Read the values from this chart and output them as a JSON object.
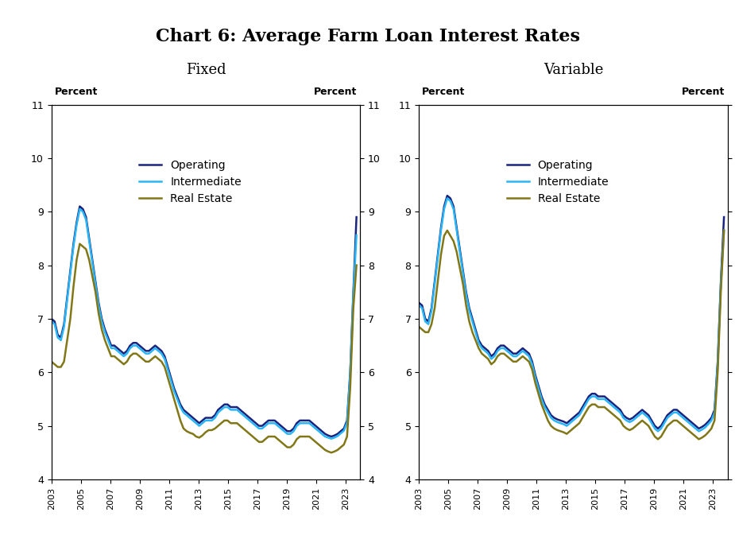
{
  "title": "Chart 6: Average Farm Loan Interest Rates",
  "subtitle_left": "Fixed",
  "subtitle_right": "Variable",
  "ylabel_left": "Percent",
  "ylabel_right": "Percent",
  "ylim": [
    4,
    11
  ],
  "yticks": [
    4,
    5,
    6,
    7,
    8,
    9,
    10,
    11
  ],
  "xtick_labels": [
    "2003",
    "2005",
    "2007",
    "2009",
    "2011",
    "2013",
    "2015",
    "2017",
    "2019",
    "2021",
    "2023"
  ],
  "legend_labels": [
    "Operating",
    "Intermediate",
    "Real Estate"
  ],
  "line_colors": [
    "#1a237e",
    "#29b6f6",
    "#827717"
  ],
  "line_width": 1.8,
  "fixed": {
    "operating": [
      7.0,
      6.95,
      6.7,
      6.65,
      6.9,
      7.4,
      7.9,
      8.4,
      8.8,
      9.1,
      9.05,
      8.9,
      8.5,
      8.1,
      7.7,
      7.3,
      7.0,
      6.8,
      6.65,
      6.5,
      6.5,
      6.45,
      6.4,
      6.35,
      6.4,
      6.5,
      6.55,
      6.55,
      6.5,
      6.45,
      6.4,
      6.4,
      6.45,
      6.5,
      6.45,
      6.4,
      6.3,
      6.1,
      5.9,
      5.7,
      5.55,
      5.4,
      5.3,
      5.25,
      5.2,
      5.15,
      5.1,
      5.05,
      5.1,
      5.15,
      5.15,
      5.15,
      5.2,
      5.3,
      5.35,
      5.4,
      5.4,
      5.35,
      5.35,
      5.35,
      5.3,
      5.25,
      5.2,
      5.15,
      5.1,
      5.05,
      5.0,
      5.0,
      5.05,
      5.1,
      5.1,
      5.1,
      5.05,
      5.0,
      4.95,
      4.9,
      4.9,
      4.95,
      5.05,
      5.1,
      5.1,
      5.1,
      5.1,
      5.05,
      5.0,
      4.95,
      4.9,
      4.85,
      4.82,
      4.8,
      4.82,
      4.85,
      4.9,
      4.95,
      5.1,
      6.0,
      7.5,
      8.9
    ],
    "intermediate": [
      6.95,
      6.9,
      6.65,
      6.6,
      6.85,
      7.35,
      7.85,
      8.35,
      8.75,
      9.05,
      9.0,
      8.85,
      8.45,
      8.05,
      7.65,
      7.25,
      6.95,
      6.75,
      6.6,
      6.45,
      6.45,
      6.4,
      6.35,
      6.3,
      6.35,
      6.45,
      6.5,
      6.5,
      6.45,
      6.4,
      6.35,
      6.35,
      6.4,
      6.45,
      6.4,
      6.35,
      6.25,
      6.05,
      5.85,
      5.65,
      5.5,
      5.35,
      5.25,
      5.2,
      5.15,
      5.1,
      5.05,
      5.0,
      5.05,
      5.1,
      5.1,
      5.1,
      5.15,
      5.25,
      5.3,
      5.35,
      5.35,
      5.3,
      5.3,
      5.3,
      5.25,
      5.2,
      5.15,
      5.1,
      5.05,
      5.0,
      4.95,
      4.95,
      5.0,
      5.05,
      5.05,
      5.05,
      5.0,
      4.95,
      4.9,
      4.85,
      4.85,
      4.9,
      5.0,
      5.05,
      5.05,
      5.05,
      5.05,
      5.0,
      4.95,
      4.9,
      4.85,
      4.8,
      4.78,
      4.76,
      4.78,
      4.81,
      4.86,
      4.91,
      5.06,
      5.96,
      7.46,
      8.56
    ],
    "real_estate": [
      6.2,
      6.15,
      6.1,
      6.1,
      6.2,
      6.6,
      7.0,
      7.6,
      8.1,
      8.4,
      8.35,
      8.3,
      8.1,
      7.8,
      7.5,
      7.1,
      6.8,
      6.6,
      6.45,
      6.3,
      6.3,
      6.25,
      6.2,
      6.15,
      6.2,
      6.3,
      6.35,
      6.35,
      6.3,
      6.25,
      6.2,
      6.2,
      6.25,
      6.3,
      6.25,
      6.2,
      6.1,
      5.9,
      5.7,
      5.5,
      5.3,
      5.1,
      4.95,
      4.9,
      4.87,
      4.85,
      4.8,
      4.78,
      4.82,
      4.88,
      4.92,
      4.92,
      4.95,
      5.0,
      5.05,
      5.1,
      5.1,
      5.05,
      5.05,
      5.05,
      5.0,
      4.95,
      4.9,
      4.85,
      4.8,
      4.75,
      4.7,
      4.7,
      4.75,
      4.8,
      4.8,
      4.8,
      4.75,
      4.7,
      4.65,
      4.6,
      4.6,
      4.65,
      4.75,
      4.8,
      4.8,
      4.8,
      4.8,
      4.75,
      4.7,
      4.65,
      4.6,
      4.55,
      4.52,
      4.5,
      4.52,
      4.55,
      4.6,
      4.65,
      4.8,
      5.7,
      7.2,
      8.0
    ]
  },
  "variable": {
    "operating": [
      7.3,
      7.25,
      7.0,
      6.95,
      7.2,
      7.7,
      8.2,
      8.7,
      9.1,
      9.3,
      9.25,
      9.1,
      8.7,
      8.3,
      7.9,
      7.5,
      7.2,
      7.0,
      6.8,
      6.6,
      6.5,
      6.45,
      6.4,
      6.3,
      6.35,
      6.45,
      6.5,
      6.5,
      6.45,
      6.4,
      6.35,
      6.35,
      6.4,
      6.45,
      6.4,
      6.35,
      6.2,
      5.95,
      5.75,
      5.55,
      5.4,
      5.3,
      5.2,
      5.15,
      5.12,
      5.1,
      5.08,
      5.05,
      5.1,
      5.15,
      5.2,
      5.25,
      5.35,
      5.45,
      5.55,
      5.6,
      5.6,
      5.55,
      5.55,
      5.55,
      5.5,
      5.45,
      5.4,
      5.35,
      5.3,
      5.2,
      5.15,
      5.12,
      5.15,
      5.2,
      5.25,
      5.3,
      5.25,
      5.2,
      5.1,
      5.0,
      4.95,
      5.0,
      5.1,
      5.2,
      5.25,
      5.3,
      5.3,
      5.25,
      5.2,
      5.15,
      5.1,
      5.05,
      5.0,
      4.95,
      4.98,
      5.02,
      5.08,
      5.15,
      5.3,
      6.2,
      7.7,
      8.9
    ],
    "intermediate": [
      7.25,
      7.2,
      6.95,
      6.9,
      7.15,
      7.65,
      8.15,
      8.65,
      9.05,
      9.25,
      9.2,
      9.05,
      8.65,
      8.25,
      7.85,
      7.45,
      7.15,
      6.95,
      6.75,
      6.55,
      6.45,
      6.4,
      6.35,
      6.25,
      6.3,
      6.4,
      6.45,
      6.45,
      6.4,
      6.35,
      6.3,
      6.3,
      6.35,
      6.4,
      6.35,
      6.3,
      6.15,
      5.9,
      5.7,
      5.5,
      5.35,
      5.25,
      5.15,
      5.1,
      5.07,
      5.05,
      5.03,
      5.0,
      5.05,
      5.1,
      5.15,
      5.2,
      5.3,
      5.4,
      5.5,
      5.55,
      5.55,
      5.5,
      5.5,
      5.5,
      5.45,
      5.4,
      5.35,
      5.3,
      5.25,
      5.15,
      5.1,
      5.07,
      5.1,
      5.15,
      5.2,
      5.25,
      5.2,
      5.15,
      5.05,
      4.95,
      4.9,
      4.95,
      5.05,
      5.15,
      5.2,
      5.25,
      5.25,
      5.2,
      5.15,
      5.1,
      5.05,
      5.0,
      4.95,
      4.9,
      4.93,
      4.97,
      5.03,
      5.1,
      5.25,
      6.15,
      7.65,
      8.65
    ],
    "real_estate": [
      6.85,
      6.8,
      6.75,
      6.75,
      6.9,
      7.2,
      7.7,
      8.2,
      8.55,
      8.65,
      8.55,
      8.45,
      8.25,
      7.95,
      7.65,
      7.25,
      6.95,
      6.75,
      6.6,
      6.45,
      6.35,
      6.3,
      6.25,
      6.15,
      6.2,
      6.3,
      6.35,
      6.35,
      6.3,
      6.25,
      6.2,
      6.2,
      6.25,
      6.3,
      6.25,
      6.2,
      6.05,
      5.8,
      5.6,
      5.4,
      5.25,
      5.1,
      5.0,
      4.95,
      4.92,
      4.9,
      4.88,
      4.85,
      4.9,
      4.95,
      5.0,
      5.05,
      5.15,
      5.25,
      5.35,
      5.4,
      5.4,
      5.35,
      5.35,
      5.35,
      5.3,
      5.25,
      5.2,
      5.15,
      5.1,
      5.0,
      4.95,
      4.92,
      4.95,
      5.0,
      5.05,
      5.1,
      5.05,
      5.0,
      4.9,
      4.8,
      4.75,
      4.8,
      4.9,
      5.0,
      5.05,
      5.1,
      5.1,
      5.05,
      5.0,
      4.95,
      4.9,
      4.85,
      4.8,
      4.75,
      4.78,
      4.82,
      4.88,
      4.95,
      5.1,
      6.0,
      7.5,
      8.65
    ]
  },
  "n_quarters": 98
}
